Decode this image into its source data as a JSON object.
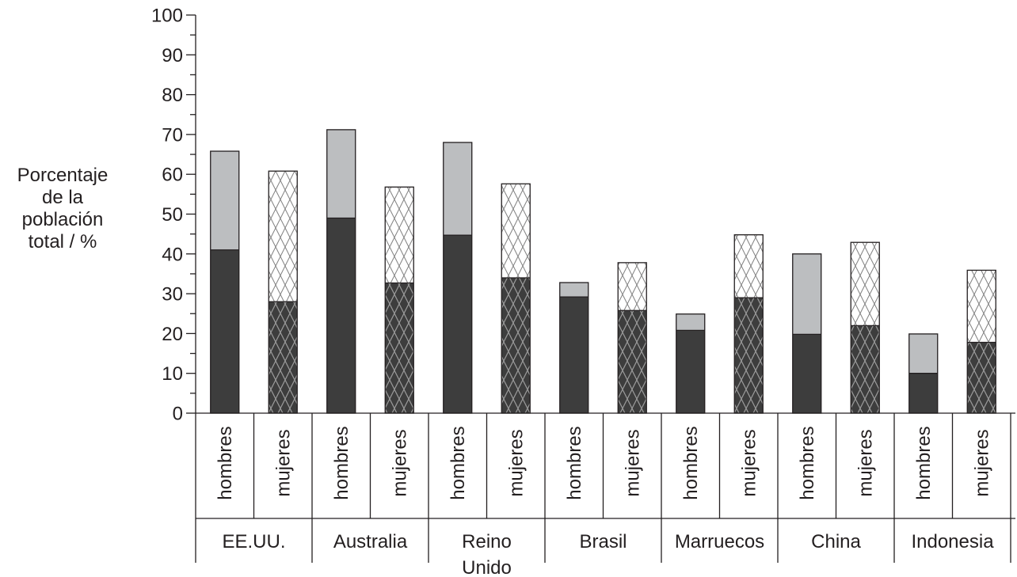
{
  "chart_data": {
    "type": "bar",
    "stacked": true,
    "ylabel_lines": [
      "Porcentaje",
      "de la",
      "población",
      "total / %"
    ],
    "ylim": [
      0,
      100
    ],
    "y_ticks": [
      0,
      10,
      20,
      30,
      40,
      50,
      60,
      70,
      80,
      90,
      100
    ],
    "grid": false,
    "colors": {
      "men_lower": "#3d3d3d",
      "men_upper": "#bcbec0",
      "women_lower": "#3d3d3d",
      "women_upper": "#ffffff",
      "hatch_on_dark": "#9a9a9a",
      "hatch_on_light": "#808080",
      "stroke": "#231f20"
    },
    "groups": [
      {
        "name": "EE.UU.",
        "bars": [
          {
            "label": "hombres",
            "lower": 41,
            "total": 65.8,
            "pattern": "solid"
          },
          {
            "label": "mujeres",
            "lower": 28,
            "total": 60.8,
            "pattern": "hatched"
          }
        ]
      },
      {
        "name": "Australia",
        "bars": [
          {
            "label": "hombres",
            "lower": 49,
            "total": 71.2,
            "pattern": "solid"
          },
          {
            "label": "mujeres",
            "lower": 32.7,
            "total": 56.8,
            "pattern": "hatched"
          }
        ]
      },
      {
        "name_lines": [
          "Reino",
          "Unido"
        ],
        "bars": [
          {
            "label": "hombres",
            "lower": 44.7,
            "total": 68,
            "pattern": "solid"
          },
          {
            "label": "mujeres",
            "lower": 34,
            "total": 57.6,
            "pattern": "hatched"
          }
        ]
      },
      {
        "name": "Brasil",
        "bars": [
          {
            "label": "hombres",
            "lower": 29.2,
            "total": 32.8,
            "pattern": "solid"
          },
          {
            "label": "mujeres",
            "lower": 25.8,
            "total": 37.8,
            "pattern": "hatched"
          }
        ]
      },
      {
        "name": "Marruecos",
        "bars": [
          {
            "label": "hombres",
            "lower": 20.8,
            "total": 24.9,
            "pattern": "solid"
          },
          {
            "label": "mujeres",
            "lower": 29,
            "total": 44.8,
            "pattern": "hatched"
          }
        ]
      },
      {
        "name": "China",
        "bars": [
          {
            "label": "hombres",
            "lower": 19.8,
            "total": 40,
            "pattern": "solid"
          },
          {
            "label": "mujeres",
            "lower": 22,
            "total": 42.9,
            "pattern": "hatched"
          }
        ]
      },
      {
        "name": "Indonesia",
        "bars": [
          {
            "label": "hombres",
            "lower": 10,
            "total": 19.9,
            "pattern": "solid"
          },
          {
            "label": "mujeres",
            "lower": 17.8,
            "total": 35.9,
            "pattern": "hatched"
          }
        ]
      }
    ]
  }
}
